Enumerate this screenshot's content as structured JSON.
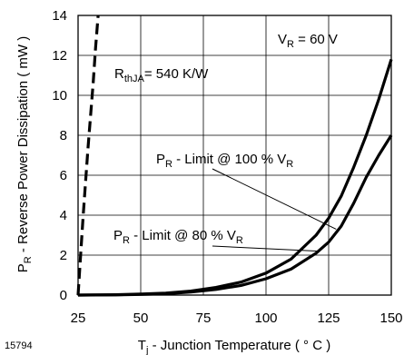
{
  "figure_id": "15794",
  "chart_data": {
    "type": "line",
    "title": "",
    "xlabel": {
      "main": "T",
      "sub": "j",
      "rest": " - Junction Temperature ( ° C )"
    },
    "ylabel": {
      "main": "P",
      "sub": "R",
      "rest": " - Reverse Power Dissipation ( mW )"
    },
    "xlim": [
      25,
      150
    ],
    "ylim": [
      0,
      14
    ],
    "x_ticks": [
      25,
      50,
      75,
      100,
      125,
      150
    ],
    "y_ticks": [
      0,
      2,
      4,
      6,
      8,
      10,
      12,
      14
    ],
    "grid": true,
    "annotations": {
      "vr": {
        "pre": "V",
        "sub": "R",
        "post": " = 60 V"
      },
      "rth": {
        "pre": "R",
        "sub": "thJA",
        "post": "= 540 K/W"
      },
      "limit100": {
        "pre": "P",
        "sub": "R",
        "mid": " - Limit @ 100 % V",
        "sub2": "R"
      },
      "limit80": {
        "pre": "P",
        "sub": "R",
        "mid": " - Limit @ 80 % V",
        "sub2": "R"
      }
    },
    "series": [
      {
        "style": "dashed",
        "x": [
          25,
          26,
          27,
          28,
          29,
          30,
          31,
          32,
          33
        ],
        "y": [
          0,
          2,
          3.9,
          5.7,
          7.4,
          9.0,
          10.6,
          12.4,
          14
        ]
      },
      {
        "style": "solid",
        "x": [
          25,
          40,
          50,
          60,
          70,
          80,
          90,
          100,
          110,
          120,
          125,
          130,
          135,
          140,
          145,
          150
        ],
        "y": [
          0,
          0.02,
          0.05,
          0.1,
          0.2,
          0.38,
          0.65,
          1.1,
          1.8,
          3.0,
          3.85,
          4.95,
          6.4,
          8.0,
          9.8,
          11.8
        ]
      },
      {
        "style": "solid",
        "x": [
          25,
          40,
          50,
          60,
          70,
          80,
          90,
          100,
          110,
          120,
          125,
          130,
          135,
          140,
          145,
          150
        ],
        "y": [
          0,
          0.01,
          0.03,
          0.07,
          0.15,
          0.28,
          0.48,
          0.82,
          1.3,
          2.1,
          2.65,
          3.45,
          4.6,
          5.9,
          7.0,
          8.0
        ]
      }
    ]
  }
}
